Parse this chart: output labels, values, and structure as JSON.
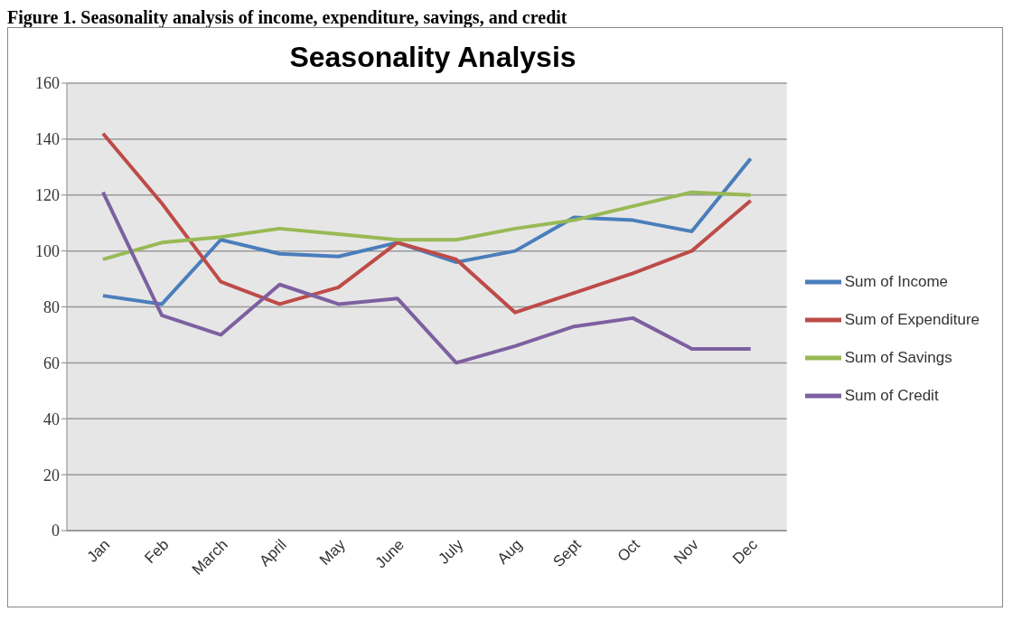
{
  "chart_data": {
    "type": "line",
    "title": "Seasonality Analysis",
    "annotations": [
      "Figure 1. Seasonality analysis of income, expenditure, savings, and credit"
    ],
    "categories": [
      "Jan",
      "Feb",
      "March",
      "April",
      "May",
      "June",
      "July",
      "Aug",
      "Sept",
      "Oct",
      "Nov",
      "Dec"
    ],
    "series": [
      {
        "name": "Sum of Income",
        "color": "#4a7ebb",
        "values": [
          84,
          81,
          104,
          99,
          98,
          103,
          96,
          100,
          112,
          111,
          107,
          133
        ]
      },
      {
        "name": "Sum of Expenditure",
        "color": "#be4b48",
        "values": [
          142,
          117,
          89,
          81,
          87,
          103,
          97,
          78,
          85,
          92,
          100,
          118
        ]
      },
      {
        "name": "Sum of Savings",
        "color": "#98b954",
        "values": [
          97,
          103,
          105,
          108,
          106,
          104,
          104,
          108,
          111,
          116,
          121,
          120
        ]
      },
      {
        "name": "Sum of Credit",
        "color": "#7d60a0",
        "values": [
          121,
          77,
          70,
          88,
          81,
          83,
          60,
          66,
          73,
          76,
          65,
          65
        ]
      }
    ],
    "ylim": [
      0,
      160
    ],
    "yticks": [
      0,
      20,
      40,
      60,
      80,
      100,
      120,
      140,
      160
    ],
    "grid": "y",
    "legend": "right",
    "marker": "none",
    "line_style": "solid"
  }
}
